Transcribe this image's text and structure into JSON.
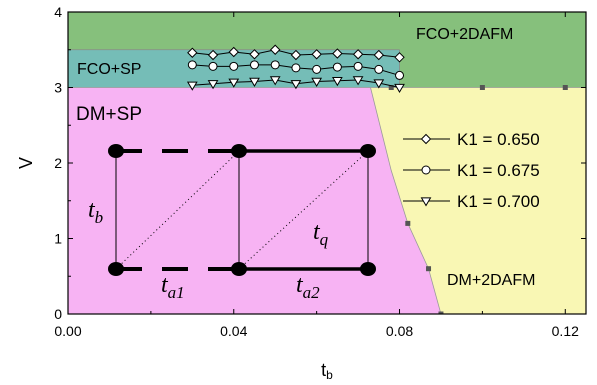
{
  "colors": {
    "fco_2dafm": "#86c07c",
    "fco_sp": "#75bdb7",
    "dm_sp": "#f7b3f3",
    "dm_2dafm": "#f9f7b4",
    "axis": "#000000",
    "boundary_marker": "#555555"
  },
  "chart_data": {
    "type": "scatter",
    "xlabel": "t",
    "xlabel_sub": "b",
    "ylabel": "V",
    "xlim": [
      0,
      0.125
    ],
    "ylim": [
      0,
      4
    ],
    "x_ticks": [
      {
        "value": 0,
        "label": "0.00"
      },
      {
        "value": 0.04,
        "label": "0.04"
      },
      {
        "value": 0.08,
        "label": "0.08"
      },
      {
        "value": 0.12,
        "label": "0.12"
      }
    ],
    "y_ticks": [
      {
        "value": 0,
        "label": "0"
      },
      {
        "value": 1,
        "label": "1"
      },
      {
        "value": 2,
        "label": "2"
      },
      {
        "value": 3,
        "label": "3"
      },
      {
        "value": 4,
        "label": "4"
      }
    ],
    "regions": [
      {
        "name": "FCO+2DAFM",
        "label_at": [
          0.1,
          3.72
        ],
        "font_size": 16
      },
      {
        "name": "FCO+SP",
        "label_at": [
          0.001,
          3.24
        ],
        "font_size": 16
      },
      {
        "name": "DM+SP",
        "label_at": [
          0.001,
          2.6
        ],
        "font_size": 19
      },
      {
        "name": "DM+2DAFM",
        "label_at": [
          0.1,
          0.4
        ],
        "font_size": 16
      }
    ],
    "phase_boundary_fco": {
      "x": [
        0,
        0.08
      ],
      "y": [
        3.5,
        3.5
      ]
    },
    "phase_boundary_dm": {
      "x": [
        0.0,
        0.073,
        0.078,
        0.082,
        0.087,
        0.09
      ],
      "y": [
        3.0,
        3.0,
        1.9,
        1.2,
        0.6,
        0.0
      ],
      "markers_x": [
        0.078,
        0.082,
        0.087,
        0.09,
        0.1,
        0.12
      ],
      "markers_y": [
        3.0,
        1.2,
        0.6,
        0.0,
        3.0,
        3.0
      ]
    },
    "series": [
      {
        "name": "K1 = 0.650",
        "marker": "diamond",
        "x": [
          0.03,
          0.035,
          0.04,
          0.045,
          0.05,
          0.055,
          0.06,
          0.065,
          0.07,
          0.075,
          0.08
        ],
        "y": [
          3.46,
          3.43,
          3.47,
          3.44,
          3.5,
          3.43,
          3.44,
          3.45,
          3.44,
          3.43,
          3.4
        ]
      },
      {
        "name": "K1 = 0.675",
        "marker": "circle",
        "x": [
          0.03,
          0.035,
          0.04,
          0.045,
          0.05,
          0.055,
          0.06,
          0.065,
          0.07,
          0.075,
          0.08
        ],
        "y": [
          3.3,
          3.28,
          3.28,
          3.3,
          3.3,
          3.26,
          3.24,
          3.27,
          3.28,
          3.24,
          3.16
        ]
      },
      {
        "name": "K1 = 0.700",
        "marker": "triangle-down",
        "x": [
          0.03,
          0.035,
          0.04,
          0.045,
          0.05,
          0.055,
          0.06,
          0.065,
          0.07,
          0.075,
          0.08
        ],
        "y": [
          3.03,
          3.05,
          3.07,
          3.08,
          3.1,
          3.05,
          3.08,
          3.09,
          3.1,
          3.06,
          3.0
        ]
      }
    ],
    "legend_position": "right-middle",
    "inset_lattice": {
      "labels": [
        "t",
        "t",
        "t",
        "t"
      ],
      "subs": [
        "b",
        "a1",
        "a2",
        "q"
      ]
    }
  }
}
